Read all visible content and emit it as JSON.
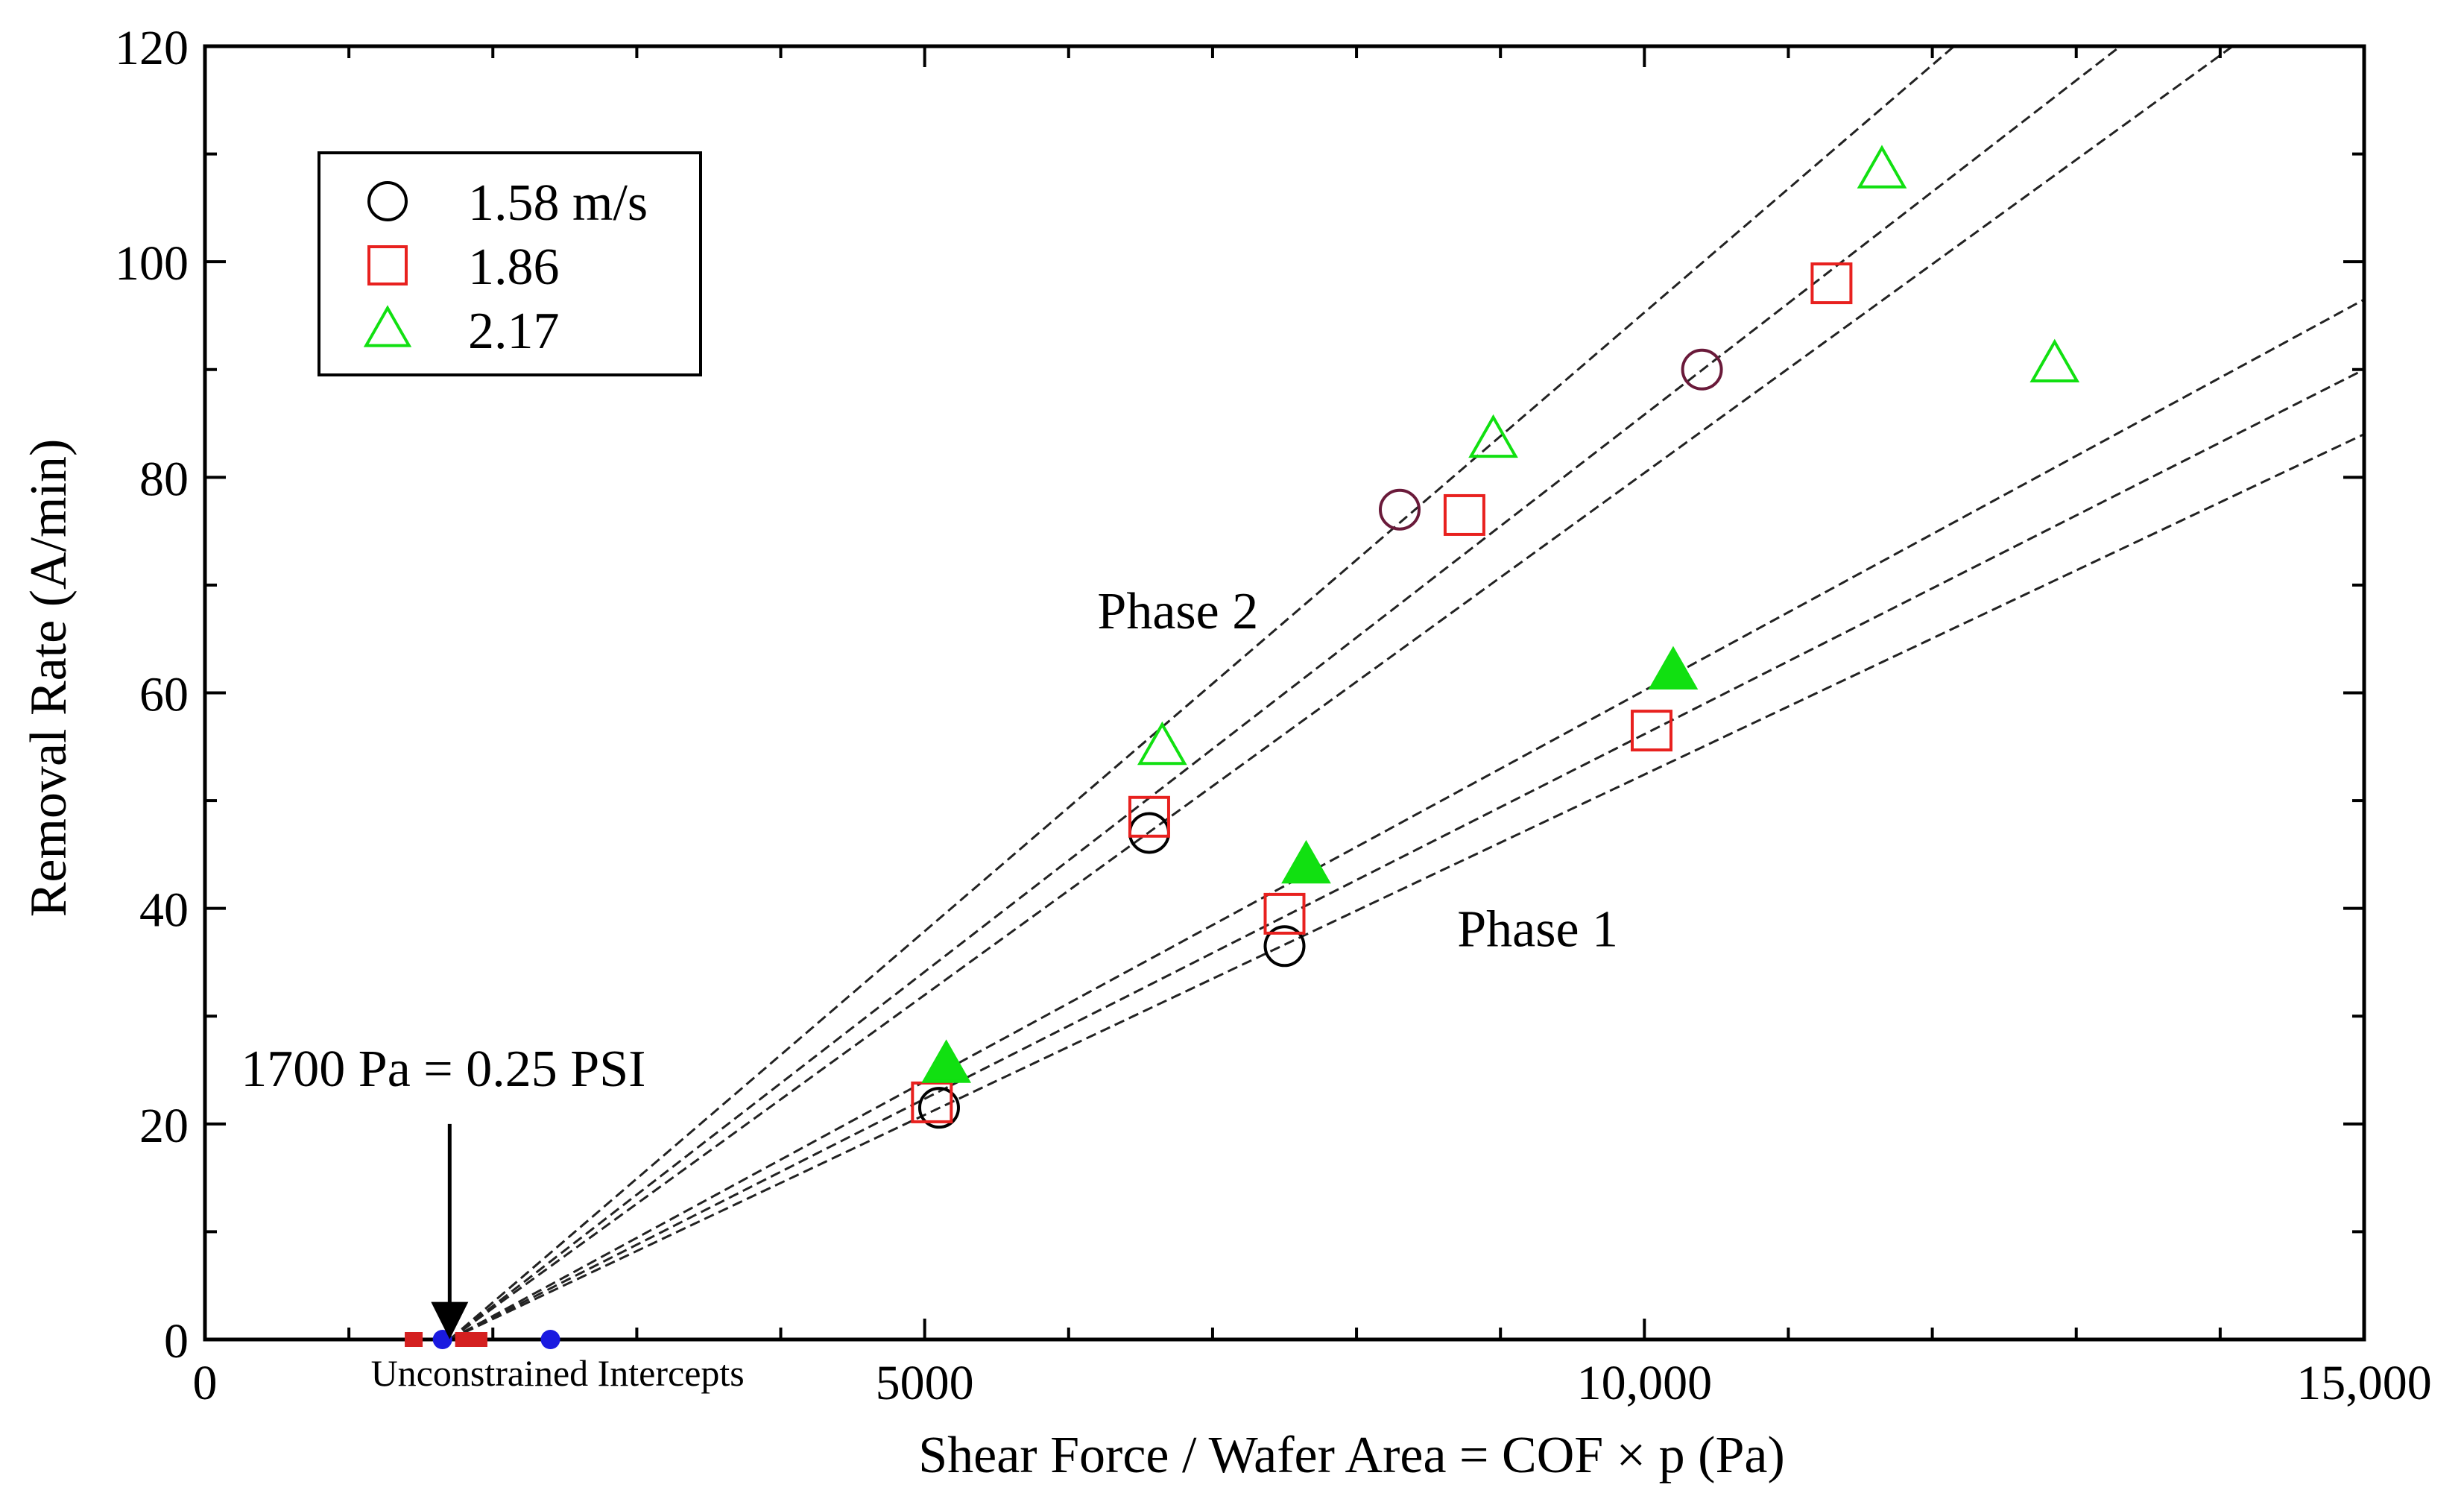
{
  "chart_data": {
    "type": "scatter",
    "title": "",
    "xlabel": "Shear Force / Wafer Area = COF × p (Pa)",
    "ylabel": "Removal Rate (A/min)",
    "xlim": [
      0,
      15000
    ],
    "ylim": [
      0,
      120
    ],
    "x_ticks": [
      {
        "value": 0,
        "label": "0"
      },
      {
        "value": 5000,
        "label": "5000"
      },
      {
        "value": 10000,
        "label": "10,000"
      },
      {
        "value": 15000,
        "label": "15,000"
      }
    ],
    "y_ticks": [
      {
        "value": 0,
        "label": "0"
      },
      {
        "value": 20,
        "label": "20"
      },
      {
        "value": 40,
        "label": "40"
      },
      {
        "value": 60,
        "label": "60"
      },
      {
        "value": 80,
        "label": "80"
      },
      {
        "value": 100,
        "label": "100"
      },
      {
        "value": 120,
        "label": "120"
      }
    ],
    "legend_position": "top-left",
    "series": [
      {
        "name": "1.58 m/s",
        "marker": "circle",
        "color": "#000000",
        "phase1": [
          [
            5100,
            21.5
          ],
          [
            7500,
            36.5
          ]
        ],
        "phase2": [
          [
            6560,
            47
          ],
          [
            8300,
            77
          ],
          [
            10400,
            90
          ]
        ]
      },
      {
        "name": "1.86",
        "marker": "square",
        "color": "#e8211f",
        "phase1": [
          [
            5050,
            22
          ],
          [
            7500,
            39.5
          ],
          [
            10050,
            56.5
          ]
        ],
        "phase2": [
          [
            6560,
            48.5
          ],
          [
            8750,
            76.5
          ],
          [
            11300,
            98
          ]
        ]
      },
      {
        "name": "2.17",
        "marker": "triangle",
        "color": "#11e011",
        "phase1": [
          [
            5150,
            25.5
          ],
          [
            7650,
            44
          ],
          [
            10200,
            62
          ],
          [
            12850,
            90.5
          ]
        ],
        "phase1_filled": true,
        "phase2": [
          [
            6650,
            55
          ],
          [
            8950,
            83.5
          ],
          [
            11650,
            108.5
          ]
        ]
      }
    ],
    "fit_lines": [
      {
        "phase": "phase2",
        "from": [
          1700,
          0
        ],
        "to": [
          12500,
          124
        ]
      },
      {
        "phase": "phase2",
        "from": [
          1700,
          0
        ],
        "to": [
          13500,
          122
        ]
      },
      {
        "phase": "phase2",
        "from": [
          1700,
          0
        ],
        "to": [
          14500,
          124
        ]
      },
      {
        "phase": "phase1",
        "from": [
          1700,
          0
        ],
        "to": [
          15000,
          96.5
        ]
      },
      {
        "phase": "phase1",
        "from": [
          1700,
          0
        ],
        "to": [
          15000,
          90
        ]
      },
      {
        "phase": "phase1",
        "from": [
          1700,
          0
        ],
        "to": [
          15000,
          84
        ]
      }
    ],
    "intercept_points": [
      {
        "x": 1450,
        "y": 0,
        "color": "#d42020",
        "shape": "square"
      },
      {
        "x": 1650,
        "y": 0,
        "color": "#1a1ae0",
        "shape": "dot"
      },
      {
        "x": 1800,
        "y": 0,
        "color": "#d42020",
        "shape": "square"
      },
      {
        "x": 1900,
        "y": 0,
        "color": "#d42020",
        "shape": "square"
      },
      {
        "x": 2400,
        "y": 0,
        "color": "#1a1ae0",
        "shape": "dot"
      }
    ],
    "annotations": [
      {
        "id": "phase2",
        "text": "Phase 2",
        "x": 6200,
        "y": 66
      },
      {
        "id": "phase1",
        "text": "Phase 1",
        "x": 8700,
        "y": 36.5
      },
      {
        "id": "pressure",
        "text": "1700 Pa = 0.25 PSI",
        "x": 250,
        "y": 23.5
      },
      {
        "id": "intercepts",
        "text": "Unconstrained Intercepts",
        "x": 2450,
        "y": -4.3
      }
    ],
    "arrow": {
      "from": [
        1700,
        20
      ],
      "to": [
        1700,
        0.3
      ]
    }
  }
}
